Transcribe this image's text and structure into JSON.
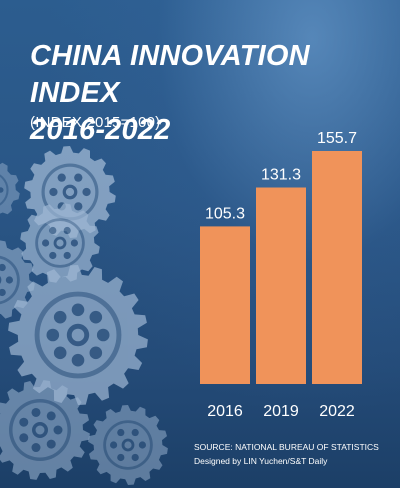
{
  "title_line1": "CHINA INNOVATION INDEX",
  "title_line2": "2016-2022",
  "subtitle": "(INDEX 2015=100)",
  "source_line1": "SOURCE: NATIONAL BUREAU OF STATISTICS",
  "source_line2": "Designed by LIN Yuchen/S&T Daily",
  "colors": {
    "bar": "#f0935a",
    "text": "#ffffff",
    "gear": "#9fb8d4"
  },
  "chart_data": {
    "type": "bar",
    "categories": [
      "2016",
      "2019",
      "2022"
    ],
    "values": [
      105.3,
      131.3,
      155.7
    ],
    "title": "CHINA INNOVATION INDEX 2016-2022",
    "subtitle": "(INDEX 2015=100)",
    "xlabel": "",
    "ylabel": "",
    "ylim": [
      0,
      155.7
    ],
    "grid": false,
    "legend": "none",
    "data_labels": true
  }
}
